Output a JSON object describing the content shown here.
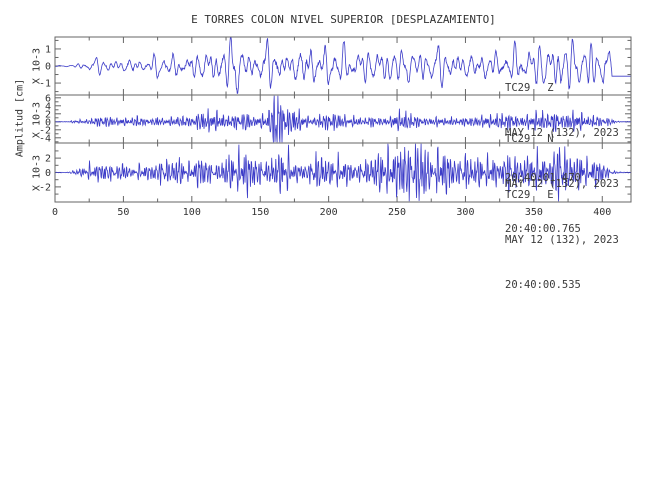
{
  "chart_data": {
    "type": "line",
    "title": "E TORRES COLON NIVEL SUPERIOR [DESPLAZAMIENTO]",
    "ylabel": "Amplitud [cm]",
    "xlabel": "",
    "xlim": [
      0,
      421
    ],
    "xticks": [
      0,
      50,
      100,
      150,
      200,
      250,
      300,
      350,
      400
    ],
    "xtick_minor_step": 25,
    "grid": false,
    "legend": "none",
    "colors": {
      "trace": "#3c3cc8",
      "frame": "#666666",
      "text": "#333333",
      "background": "#ffffff"
    },
    "panels": [
      {
        "station": "TC29",
        "component": "Z",
        "date": "MAY 12 (132), 2023",
        "time": "20:40:01.470",
        "scale_label": "X 10-3",
        "yticks": [
          1,
          0,
          -1
        ],
        "ytick_minor_step": 0.5,
        "ylim": [
          -1.7,
          1.7
        ],
        "freq": 0.16,
        "seed": 101,
        "tail": {
          "start": 407,
          "offset": -0.6
        },
        "envelope": [
          [
            0,
            0.02
          ],
          [
            12,
            0.03
          ],
          [
            16,
            0.2
          ],
          [
            22,
            0.35
          ],
          [
            30,
            0.3
          ],
          [
            38,
            0.42
          ],
          [
            46,
            0.35
          ],
          [
            54,
            0.5
          ],
          [
            62,
            0.45
          ],
          [
            70,
            0.55
          ],
          [
            78,
            0.7
          ],
          [
            86,
            0.75
          ],
          [
            94,
            0.7
          ],
          [
            102,
            0.8
          ],
          [
            110,
            0.75
          ],
          [
            118,
            0.85
          ],
          [
            126,
            0.95
          ],
          [
            132,
            1.25
          ],
          [
            138,
            1.0
          ],
          [
            144,
            1.15
          ],
          [
            152,
            1.3
          ],
          [
            160,
            1.35
          ],
          [
            168,
            1.25
          ],
          [
            176,
            1.1
          ],
          [
            184,
            1.05
          ],
          [
            192,
            1.1
          ],
          [
            200,
            0.95
          ],
          [
            210,
            0.9
          ],
          [
            220,
            0.95
          ],
          [
            230,
            0.85
          ],
          [
            240,
            0.9
          ],
          [
            250,
            0.85
          ],
          [
            260,
            0.8
          ],
          [
            270,
            0.85
          ],
          [
            280,
            0.9
          ],
          [
            290,
            0.85
          ],
          [
            300,
            0.8
          ],
          [
            310,
            0.7
          ],
          [
            320,
            0.75
          ],
          [
            330,
            0.85
          ],
          [
            340,
            0.95
          ],
          [
            350,
            0.95
          ],
          [
            360,
            1.05
          ],
          [
            368,
            1.3
          ],
          [
            374,
            1.15
          ],
          [
            380,
            0.95
          ],
          [
            388,
            1.0
          ],
          [
            396,
            1.1
          ],
          [
            401,
            1.3
          ],
          [
            404,
            0.8
          ],
          [
            407,
            0.3
          ],
          [
            421,
            0.05
          ]
        ]
      },
      {
        "station": "TC29",
        "component": "N",
        "date": "MAY 12 (132), 2023",
        "time": "20:40:00.765",
        "scale_label": "X 10-3",
        "yticks": [
          6,
          4,
          2,
          0,
          -2,
          -4
        ],
        "ytick_minor_step": 1,
        "ylim": [
          -5.3,
          6.7
        ],
        "freq": 0.6,
        "seed": 202,
        "tail": null,
        "envelope": [
          [
            0,
            0.03
          ],
          [
            10,
            0.05
          ],
          [
            14,
            0.45
          ],
          [
            20,
            0.7
          ],
          [
            30,
            0.95
          ],
          [
            40,
            1.05
          ],
          [
            50,
            0.95
          ],
          [
            60,
            1.05
          ],
          [
            70,
            0.95
          ],
          [
            80,
            1.05
          ],
          [
            90,
            1.15
          ],
          [
            100,
            1.35
          ],
          [
            108,
            1.6
          ],
          [
            114,
            1.85
          ],
          [
            120,
            1.7
          ],
          [
            126,
            2.0
          ],
          [
            132,
            1.8
          ],
          [
            138,
            1.6
          ],
          [
            144,
            1.7
          ],
          [
            150,
            1.85
          ],
          [
            155,
            2.1
          ],
          [
            158,
            3.2
          ],
          [
            161,
            6.2
          ],
          [
            163,
            5.4
          ],
          [
            166,
            3.6
          ],
          [
            170,
            2.7
          ],
          [
            175,
            2.3
          ],
          [
            180,
            2.0
          ],
          [
            186,
            1.7
          ],
          [
            192,
            1.6
          ],
          [
            198,
            1.7
          ],
          [
            205,
            1.4
          ],
          [
            212,
            1.25
          ],
          [
            220,
            1.05
          ],
          [
            228,
            0.95
          ],
          [
            236,
            0.85
          ],
          [
            244,
            1.0
          ],
          [
            250,
            1.45
          ],
          [
            256,
            1.5
          ],
          [
            262,
            1.25
          ],
          [
            270,
            1.05
          ],
          [
            278,
            0.9
          ],
          [
            286,
            0.75
          ],
          [
            294,
            0.7
          ],
          [
            302,
            0.8
          ],
          [
            310,
            0.95
          ],
          [
            318,
            1.1
          ],
          [
            326,
            1.35
          ],
          [
            334,
            1.6
          ],
          [
            342,
            1.5
          ],
          [
            350,
            1.65
          ],
          [
            356,
            1.8
          ],
          [
            362,
            1.65
          ],
          [
            368,
            1.75
          ],
          [
            374,
            1.6
          ],
          [
            380,
            1.5
          ],
          [
            386,
            1.55
          ],
          [
            392,
            1.4
          ],
          [
            398,
            1.5
          ],
          [
            404,
            1.3
          ],
          [
            408,
            0.7
          ],
          [
            411,
            0.15
          ],
          [
            421,
            0.05
          ]
        ]
      },
      {
        "station": "TC29",
        "component": "E",
        "date": "MAY 12 (132), 2023",
        "time": "20:40:00.535",
        "scale_label": "X 10-3",
        "yticks": [
          2,
          0,
          -2
        ],
        "ytick_minor_step": 1,
        "ylim": [
          -4.1,
          4.1
        ],
        "freq": 0.55,
        "seed": 303,
        "tail": null,
        "envelope": [
          [
            0,
            0.03
          ],
          [
            10,
            0.05
          ],
          [
            13,
            0.35
          ],
          [
            20,
            0.65
          ],
          [
            26,
            0.95
          ],
          [
            34,
            1.05
          ],
          [
            42,
            1.1
          ],
          [
            50,
            0.95
          ],
          [
            58,
            0.85
          ],
          [
            66,
            0.9
          ],
          [
            72,
            1.15
          ],
          [
            78,
            1.4
          ],
          [
            86,
            1.3
          ],
          [
            94,
            1.45
          ],
          [
            102,
            1.55
          ],
          [
            110,
            1.8
          ],
          [
            116,
            2.0
          ],
          [
            124,
            1.9
          ],
          [
            132,
            2.0
          ],
          [
            140,
            1.85
          ],
          [
            148,
            1.65
          ],
          [
            154,
            1.8
          ],
          [
            160,
            2.0
          ],
          [
            166,
            1.9
          ],
          [
            172,
            1.75
          ],
          [
            178,
            1.85
          ],
          [
            184,
            1.7
          ],
          [
            190,
            1.6
          ],
          [
            196,
            1.65
          ],
          [
            202,
            1.45
          ],
          [
            208,
            1.2
          ],
          [
            214,
            1.05
          ],
          [
            220,
            1.25
          ],
          [
            226,
            1.6
          ],
          [
            232,
            2.0
          ],
          [
            238,
            2.25
          ],
          [
            244,
            2.35
          ],
          [
            250,
            2.6
          ],
          [
            256,
            2.8
          ],
          [
            262,
            2.7
          ],
          [
            268,
            2.9
          ],
          [
            274,
            2.5
          ],
          [
            280,
            2.25
          ],
          [
            286,
            2.05
          ],
          [
            292,
            1.95
          ],
          [
            298,
            2.0
          ],
          [
            304,
            1.7
          ],
          [
            310,
            1.55
          ],
          [
            316,
            1.45
          ],
          [
            322,
            1.55
          ],
          [
            328,
            1.75
          ],
          [
            334,
            2.0
          ],
          [
            340,
            2.4
          ],
          [
            346,
            2.6
          ],
          [
            350,
            3.0
          ],
          [
            354,
            2.6
          ],
          [
            360,
            2.35
          ],
          [
            366,
            2.65
          ],
          [
            370,
            2.85
          ],
          [
            374,
            2.5
          ],
          [
            380,
            2.1
          ],
          [
            386,
            1.85
          ],
          [
            392,
            1.55
          ],
          [
            398,
            1.2
          ],
          [
            402,
            0.7
          ],
          [
            406,
            0.2
          ],
          [
            421,
            0.05
          ]
        ]
      }
    ]
  }
}
